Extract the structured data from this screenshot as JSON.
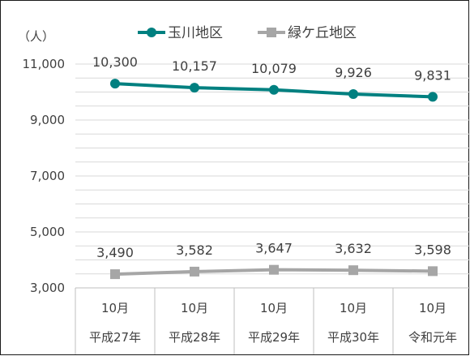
{
  "chart_data": {
    "type": "line",
    "unit_label": "（人）",
    "categories": [
      [
        "10月",
        "平成27年"
      ],
      [
        "10月",
        "平成28年"
      ],
      [
        "10月",
        "平成29年"
      ],
      [
        "10月",
        "平成30年"
      ],
      [
        "10月",
        "令和元年"
      ]
    ],
    "series": [
      {
        "name": "玉川地区",
        "values": [
          10300,
          10157,
          10079,
          9926,
          9831
        ],
        "labels": [
          "10,300",
          "10,157",
          "10,079",
          "9,926",
          "9,831"
        ],
        "color": "#008080"
      },
      {
        "name": "緑ケ丘地区",
        "values": [
          3490,
          3582,
          3647,
          3632,
          3598
        ],
        "labels": [
          "3,490",
          "3,582",
          "3,647",
          "3,632",
          "3,598"
        ],
        "color": "#a6a6a6"
      }
    ],
    "ylim": [
      3000,
      11000
    ],
    "yticks": [
      3000,
      5000,
      7000,
      9000,
      11000
    ],
    "ytick_labels": [
      "3,000",
      "5,000",
      "7,000",
      "9,000",
      "11,000"
    ],
    "minor_grid_step": 500,
    "grid_color": "#d9d9d9",
    "legend_position": "top"
  }
}
